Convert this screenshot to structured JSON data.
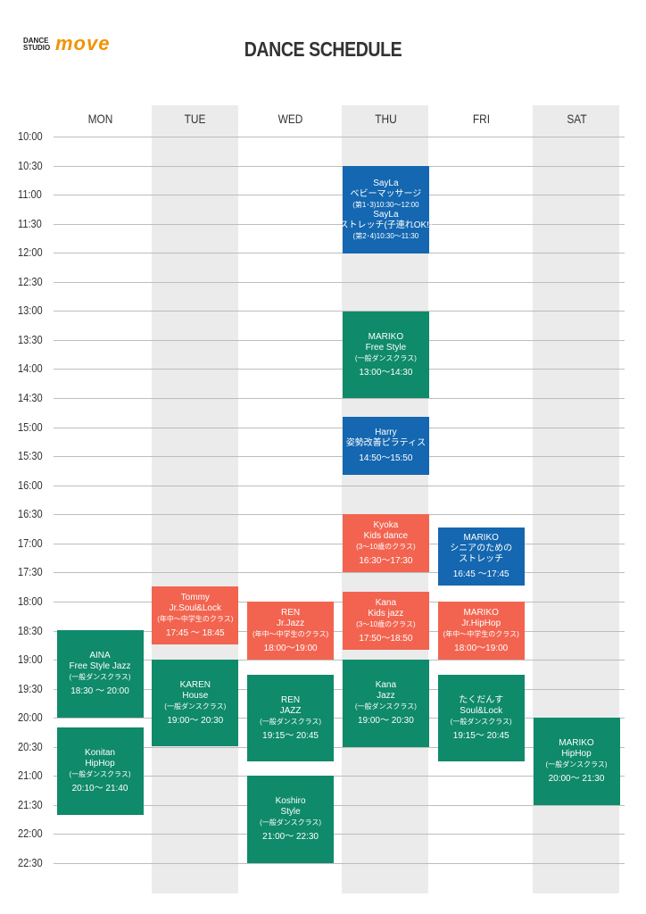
{
  "header": {
    "logo_small": "DANCE\nSTUDIO",
    "logo_big": "move",
    "title": "DANCE SCHEDULE"
  },
  "days": [
    "MON",
    "TUE",
    "WED",
    "THU",
    "FRI",
    "SAT"
  ],
  "times": [
    "10:00",
    "10:30",
    "11:00",
    "11:30",
    "12:00",
    "12:30",
    "13:00",
    "13:30",
    "14:00",
    "14:30",
    "15:00",
    "15:30",
    "16:00",
    "16:30",
    "17:00",
    "17:30",
    "18:00",
    "18:30",
    "19:00",
    "19:30",
    "20:00",
    "20:30",
    "21:00",
    "21:30",
    "22:00",
    "22:30"
  ],
  "classes": [
    {
      "color": "#1467b0",
      "lines": [
        "SayLa",
        "ベビーマッサージ",
        "(第1･3)10:30～12:00",
        "SayLa",
        "ストレッチ(子連れOK!)",
        "(第2･4)10:30～11:30"
      ]
    },
    {
      "color": "#0f8a6a",
      "lines": [
        "MARIKO",
        "Free Style",
        "(一般ダンスクラス)",
        "13:00～14:30"
      ]
    },
    {
      "color": "#1467b0",
      "lines": [
        "Harry",
        "姿勢改善ピラティス",
        "14:50～15:50"
      ]
    },
    {
      "color": "#f26450",
      "lines": [
        "Kyoka",
        "Kids dance",
        "(3～10歳のクラス)",
        "16:30～17:30"
      ]
    },
    {
      "color": "#1467b0",
      "lines": [
        "MARIKO",
        "シニアのための",
        "ストレッチ",
        "16:45 ～17:45"
      ]
    },
    {
      "color": "#f26450",
      "lines": [
        "Tommy",
        "Jr.Soul&Lock",
        "(年中～中学生のクラス)",
        "17:45 ～ 18:45"
      ]
    },
    {
      "color": "#f26450",
      "lines": [
        "REN",
        "Jr.Jazz",
        "(年中～中学生のクラス)",
        "18:00～19:00"
      ]
    },
    {
      "color": "#f26450",
      "lines": [
        "Kana",
        "Kids jazz",
        "(3～10歳のクラス)",
        "17:50～18:50"
      ]
    },
    {
      "color": "#f26450",
      "lines": [
        "MARIKO",
        "Jr.HipHop",
        "(年中～中学生のクラス)",
        "18:00～19:00"
      ]
    },
    {
      "color": "#0f8a6a",
      "lines": [
        "AINA",
        "Free Style Jazz",
        "(一般ダンスクラス)",
        "18:30 ～ 20:00"
      ]
    },
    {
      "color": "#0f8a6a",
      "lines": [
        "KAREN",
        "House",
        "(一般ダンスクラス)",
        "19:00～ 20:30"
      ]
    },
    {
      "color": "#0f8a6a",
      "lines": [
        "REN",
        "JAZZ",
        "(一般ダンスクラス)",
        "19:15～ 20:45"
      ]
    },
    {
      "color": "#0f8a6a",
      "lines": [
        "Kana",
        "Jazz",
        "(一般ダンスクラス)",
        "19:00～ 20:30"
      ]
    },
    {
      "color": "#0f8a6a",
      "lines": [
        "たくだんす",
        "Soul&Lock",
        "(一般ダンスクラス)",
        "19:15～ 20:45"
      ]
    },
    {
      "color": "#0f8a6a",
      "lines": [
        "Konitan",
        "HipHop",
        "(一般ダンスクラス)",
        "20:10～ 21:40"
      ]
    },
    {
      "color": "#0f8a6a",
      "lines": [
        "Koshiro",
        "Style",
        "(一般ダンスクラス)",
        "21:00～ 22:30"
      ]
    },
    {
      "color": "#0f8a6a",
      "lines": [
        "MARIKO",
        "HipHop",
        "(一般ダンスクラス)",
        "20:00～ 21:30"
      ]
    }
  ]
}
